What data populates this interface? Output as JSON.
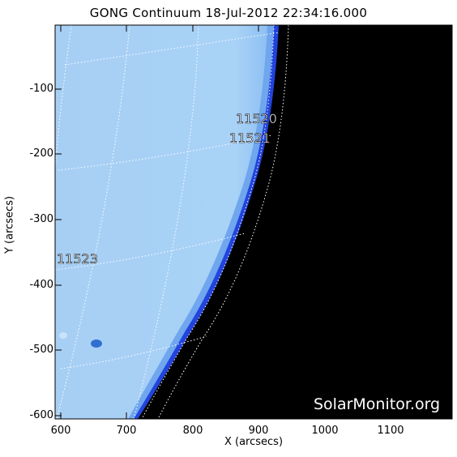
{
  "title": "GONG Continuum 18-Jul-2012 22:34:16.000",
  "x_axis": {
    "label": "X (arcsecs)",
    "ticks": [
      "600",
      "700",
      "800",
      "900",
      "1000",
      "1100"
    ]
  },
  "y_axis": {
    "label": "Y (arcsecs)",
    "ticks": [
      "-100",
      "-200",
      "-300",
      "-400",
      "-500",
      "-600"
    ]
  },
  "regions": [
    {
      "id": "11520",
      "label": "11520"
    },
    {
      "id": "11521",
      "label": "11521"
    },
    {
      "id": "11523",
      "label": "11523"
    }
  ],
  "watermark": "SolarMonitor.org",
  "colors": {
    "disk": "#a9d2f6",
    "limb": "#1d3fd8",
    "space": "#000000",
    "grid": "#ffffff"
  }
}
